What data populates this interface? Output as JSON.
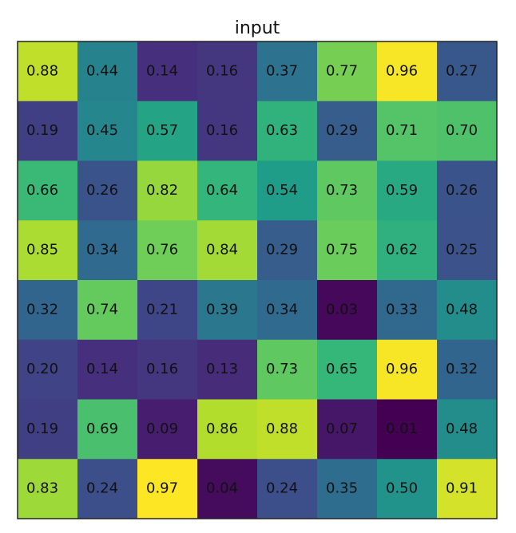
{
  "chart_data": {
    "type": "heatmap",
    "title": "input",
    "colormap": "viridis",
    "values": [
      [
        0.88,
        0.44,
        0.14,
        0.16,
        0.37,
        0.77,
        0.96,
        0.27
      ],
      [
        0.19,
        0.45,
        0.57,
        0.16,
        0.63,
        0.29,
        0.71,
        0.7
      ],
      [
        0.66,
        0.26,
        0.82,
        0.64,
        0.54,
        0.73,
        0.59,
        0.26
      ],
      [
        0.85,
        0.34,
        0.76,
        0.84,
        0.29,
        0.75,
        0.62,
        0.25
      ],
      [
        0.32,
        0.74,
        0.21,
        0.39,
        0.34,
        0.03,
        0.33,
        0.48
      ],
      [
        0.2,
        0.14,
        0.16,
        0.13,
        0.73,
        0.65,
        0.96,
        0.32
      ],
      [
        0.19,
        0.69,
        0.09,
        0.86,
        0.88,
        0.07,
        0.01,
        0.48
      ],
      [
        0.83,
        0.24,
        0.97,
        0.04,
        0.24,
        0.35,
        0.5,
        0.91
      ]
    ],
    "value_labels": [
      [
        "0.88",
        "0.44",
        "0.14",
        "0.16",
        "0.37",
        "0.77",
        "0.96",
        "0.27"
      ],
      [
        "0.19",
        "0.45",
        "0.57",
        "0.16",
        "0.63",
        "0.29",
        "0.71",
        "0.70"
      ],
      [
        "0.66",
        "0.26",
        "0.82",
        "0.64",
        "0.54",
        "0.73",
        "0.59",
        "0.26"
      ],
      [
        "0.85",
        "0.34",
        "0.76",
        "0.84",
        "0.29",
        "0.75",
        "0.62",
        "0.25"
      ],
      [
        "0.32",
        "0.74",
        "0.21",
        "0.39",
        "0.34",
        "0.03",
        "0.33",
        "0.48"
      ],
      [
        "0.20",
        "0.14",
        "0.16",
        "0.13",
        "0.73",
        "0.65",
        "0.96",
        "0.32"
      ],
      [
        "0.19",
        "0.69",
        "0.09",
        "0.86",
        "0.88",
        "0.07",
        "0.01",
        "0.48"
      ],
      [
        "0.83",
        "0.24",
        "0.97",
        "0.04",
        "0.24",
        "0.35",
        "0.50",
        "0.91"
      ]
    ]
  }
}
